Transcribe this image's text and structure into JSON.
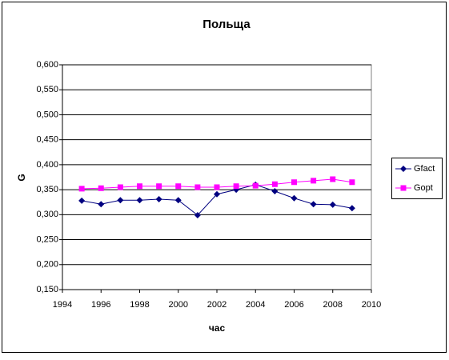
{
  "chart_data": {
    "type": "line",
    "title": "Польща",
    "x_label": "час",
    "y_label": "G",
    "x": [
      1995,
      1996,
      1997,
      1998,
      1999,
      2000,
      2001,
      2002,
      2003,
      2004,
      2005,
      2006,
      2007,
      2008,
      2009
    ],
    "series": [
      {
        "name": "Gfact",
        "color": "#000080",
        "marker": "diamond",
        "values": [
          0.328,
          0.321,
          0.329,
          0.329,
          0.331,
          0.329,
          0.299,
          0.341,
          0.35,
          0.36,
          0.347,
          0.333,
          0.321,
          0.32,
          0.313
        ]
      },
      {
        "name": "Gopt",
        "color": "#ff00ff",
        "marker": "square",
        "values": [
          0.352,
          0.353,
          0.355,
          0.357,
          0.357,
          0.357,
          0.355,
          0.355,
          0.357,
          0.358,
          0.361,
          0.365,
          0.368,
          0.371,
          0.365
        ]
      }
    ],
    "xlim": [
      1994,
      2010
    ],
    "xticks": [
      1994,
      1996,
      1998,
      2000,
      2002,
      2004,
      2006,
      2008,
      2010
    ],
    "ylim": [
      0.15,
      0.6
    ],
    "yticks": [
      {
        "value": 0.15,
        "label": "0,150"
      },
      {
        "value": 0.2,
        "label": "0,200"
      },
      {
        "value": 0.25,
        "label": "0,250"
      },
      {
        "value": 0.3,
        "label": "0,300"
      },
      {
        "value": 0.35,
        "label": "0,350"
      },
      {
        "value": 0.4,
        "label": "0,400"
      },
      {
        "value": 0.45,
        "label": "0,450"
      },
      {
        "value": 0.5,
        "label": "0,500"
      },
      {
        "value": 0.55,
        "label": "0,550"
      },
      {
        "value": 0.6,
        "label": "0,600"
      }
    ],
    "grid": true,
    "legend": "right"
  }
}
